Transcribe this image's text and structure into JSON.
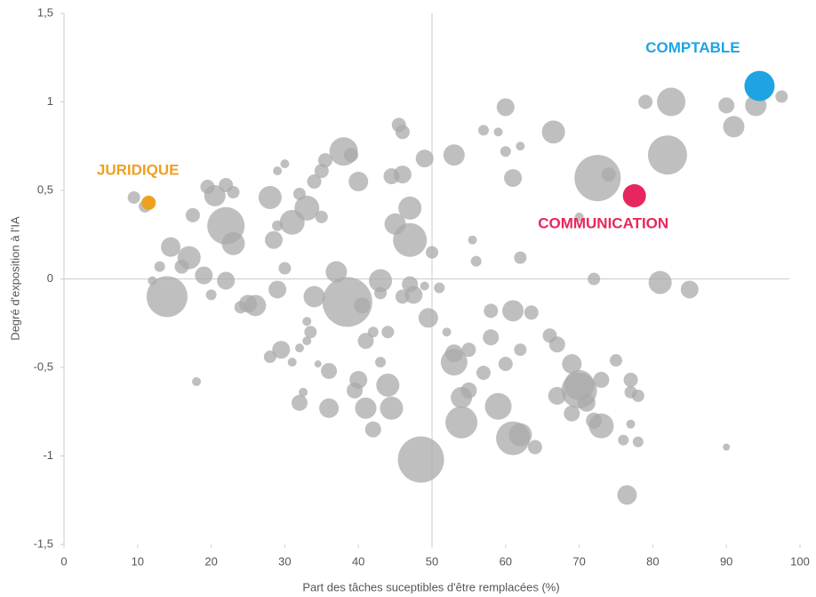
{
  "chart_data": {
    "type": "scatter",
    "xlabel": "Part des tâches suceptibles d'être remplacées (%)",
    "ylabel": "Degré d'exposition à l'IA",
    "xlim": [
      0,
      100
    ],
    "ylim": [
      -1.5,
      1.5
    ],
    "xticks": [
      0,
      10,
      20,
      30,
      40,
      50,
      60,
      70,
      80,
      90,
      100
    ],
    "yticks": [
      {
        "value": -1.5,
        "label": "-1,5"
      },
      {
        "value": -1,
        "label": "-1"
      },
      {
        "value": -0.5,
        "label": "-0,5"
      },
      {
        "value": 0,
        "label": "0"
      },
      {
        "value": 0.5,
        "label": "0,5"
      },
      {
        "value": 1,
        "label": "1"
      },
      {
        "value": 1.5,
        "label": "1,5"
      }
    ],
    "reference_lines": {
      "x": 50,
      "y": 0
    },
    "color": "#a9a9a9",
    "x": [
      9.5,
      11,
      14.5,
      14,
      13,
      12,
      16,
      17,
      17.5,
      19,
      19.5,
      20.5,
      22,
      22,
      23,
      23,
      22,
      20,
      24,
      26,
      25,
      28,
      28.5,
      29,
      29,
      30,
      30,
      29,
      28,
      29.5,
      31,
      32,
      33,
      34,
      35,
      35.5,
      35,
      34,
      33,
      33,
      32,
      33.5,
      37,
      38,
      39,
      38.5,
      40,
      40.5,
      41,
      42,
      40,
      39.5,
      41,
      42,
      43,
      43,
      44.5,
      45,
      46,
      45.5,
      46,
      47,
      47,
      47,
      47.5,
      46,
      44,
      44.5,
      43,
      44,
      36,
      36,
      32,
      32.5,
      31,
      34.5,
      18,
      49,
      50,
      49.5,
      48.5,
      49,
      51,
      52,
      53,
      53,
      53,
      54,
      54,
      55,
      55,
      56,
      55.5,
      57,
      58,
      58,
      59,
      60,
      61,
      61,
      61,
      62,
      63.5,
      62,
      62,
      60,
      59,
      62,
      60,
      57,
      64,
      66.5,
      66,
      67,
      69,
      70,
      70,
      71,
      69,
      67,
      72,
      73,
      73,
      72,
      72.5,
      74,
      75,
      76,
      77,
      77,
      78,
      78,
      76.5,
      79,
      81,
      82.5,
      82,
      85,
      90,
      91,
      94,
      97.5,
      90,
      70,
      77
    ],
    "values": [
      0.46,
      0.41,
      0.18,
      -0.1,
      0.07,
      -0.01,
      0.07,
      0.12,
      0.36,
      0.02,
      0.52,
      0.47,
      0.3,
      0.53,
      0.49,
      0.2,
      -0.01,
      -0.09,
      -0.16,
      -0.15,
      -0.14,
      0.46,
      0.22,
      0.3,
      0.61,
      0.65,
      0.06,
      -0.06,
      -0.44,
      -0.4,
      0.32,
      0.48,
      0.4,
      0.55,
      0.61,
      0.67,
      0.35,
      -0.1,
      -0.24,
      -0.35,
      -0.39,
      -0.3,
      0.04,
      0.72,
      0.7,
      -0.13,
      0.55,
      -0.15,
      -0.35,
      -0.3,
      -0.57,
      -0.63,
      -0.73,
      -0.85,
      -0.01,
      -0.08,
      0.58,
      0.31,
      0.59,
      0.87,
      0.83,
      0.4,
      0.22,
      -0.03,
      -0.09,
      -0.1,
      -0.6,
      -0.73,
      -0.47,
      -0.3,
      -0.52,
      -0.73,
      -0.7,
      -0.64,
      -0.47,
      -0.48,
      -0.58,
      0.68,
      0.15,
      -0.22,
      -1.02,
      -0.04,
      -0.05,
      -0.3,
      0.7,
      -0.42,
      -0.47,
      -0.67,
      -0.81,
      -0.4,
      -0.63,
      0.1,
      0.22,
      -0.53,
      -0.33,
      -0.18,
      -0.72,
      -0.48,
      -0.9,
      0.57,
      -0.18,
      -0.88,
      -0.19,
      -0.4,
      0.12,
      0.97,
      0.83,
      0.75,
      0.72,
      0.84,
      -0.95,
      0.83,
      -0.32,
      -0.37,
      -0.48,
      -0.6,
      -0.63,
      -0.7,
      -0.76,
      -0.66,
      -0.8,
      -0.83,
      -0.57,
      0,
      0.57,
      0.59,
      -0.46,
      -0.91,
      -0.57,
      -0.64,
      -0.66,
      -0.92,
      -1.22,
      1,
      -0.02,
      1,
      0.7,
      -0.06,
      0.98,
      0.86,
      0.98,
      1.03,
      -0.95,
      0.35,
      -0.82
    ],
    "sizes": [
      7,
      7,
      11,
      23,
      6,
      5,
      8,
      13,
      8,
      10,
      8,
      12,
      21,
      8,
      7,
      13,
      10,
      6,
      7,
      12,
      10,
      13,
      10,
      6,
      5,
      5,
      7,
      10,
      7,
      10,
      14,
      7,
      14,
      8,
      8,
      8,
      7,
      12,
      5,
      5,
      5,
      7,
      12,
      16,
      8,
      28,
      11,
      9,
      9,
      6,
      10,
      9,
      12,
      9,
      13,
      7,
      9,
      12,
      10,
      8,
      8,
      13,
      19,
      9,
      10,
      8,
      13,
      13,
      6,
      7,
      9,
      11,
      9,
      5,
      5,
      4,
      5,
      10,
      7,
      11,
      26,
      5,
      6,
      5,
      12,
      10,
      15,
      12,
      18,
      8,
      9,
      6,
      5,
      8,
      9,
      8,
      15,
      8,
      19,
      10,
      12,
      13,
      8,
      7,
      7,
      10,
      5,
      5,
      6,
      6,
      8,
      13,
      8,
      9,
      11,
      17,
      20,
      10,
      9,
      10,
      9,
      14,
      9,
      7,
      26,
      8,
      7,
      6,
      8,
      7,
      7,
      6,
      11,
      8,
      13,
      16,
      22,
      10,
      9,
      12,
      12,
      7,
      4,
      5,
      5
    ],
    "highlights": [
      {
        "label": "JURIDIQUE",
        "x": 11.5,
        "y": 0.43,
        "size": 8,
        "color": "#f0a020"
      },
      {
        "label": "COMMUNICATION",
        "x": 77.5,
        "y": 0.47,
        "size": 13,
        "color": "#e8265e"
      },
      {
        "label": "COMPTABLE",
        "x": 94.5,
        "y": 1.09,
        "size": 17,
        "color": "#1ea4e3"
      }
    ]
  }
}
